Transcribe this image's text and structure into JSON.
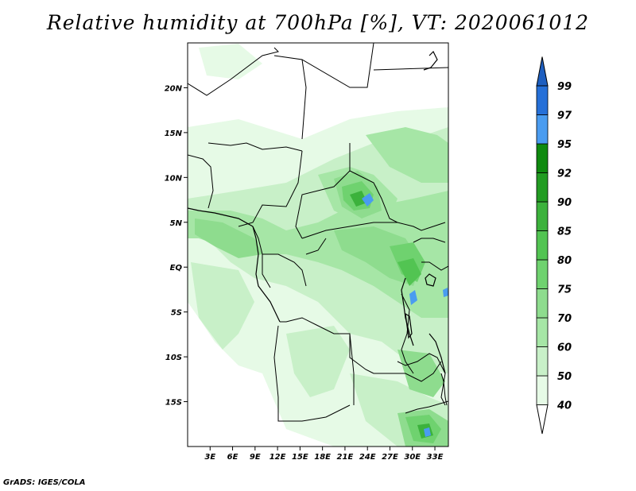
{
  "title": "Relative humidity at 700hPa [%], VT: 2020061012",
  "credit": "GrADS: IGES/COLA",
  "map": {
    "lon_range": [
      0,
      34.8
    ],
    "lat_range": [
      -20,
      25
    ],
    "lon_ticks": [
      {
        "value": 3,
        "label": "3E"
      },
      {
        "value": 6,
        "label": "6E"
      },
      {
        "value": 9,
        "label": "9E"
      },
      {
        "value": 12,
        "label": "12E"
      },
      {
        "value": 15,
        "label": "15E"
      },
      {
        "value": 18,
        "label": "18E"
      },
      {
        "value": 21,
        "label": "21E"
      },
      {
        "value": 24,
        "label": "24E"
      },
      {
        "value": 27,
        "label": "27E"
      },
      {
        "value": 30,
        "label": "30E"
      },
      {
        "value": 33,
        "label": "33E"
      }
    ],
    "lat_ticks": [
      {
        "value": 20,
        "label": "20N"
      },
      {
        "value": 15,
        "label": "15N"
      },
      {
        "value": 10,
        "label": "10N"
      },
      {
        "value": 5,
        "label": "5N"
      },
      {
        "value": 0,
        "label": "EQ"
      },
      {
        "value": -5,
        "label": "5S"
      },
      {
        "value": -10,
        "label": "10S"
      },
      {
        "value": -15,
        "label": "15S"
      }
    ]
  },
  "colorbar": {
    "levels": [
      {
        "label": "40",
        "color": "#ffffff"
      },
      {
        "label": "50",
        "color": "#e6fae6"
      },
      {
        "label": "60",
        "color": "#c8f0c8"
      },
      {
        "label": "70",
        "color": "#a6e6a6"
      },
      {
        "label": "75",
        "color": "#8edc8e"
      },
      {
        "label": "80",
        "color": "#6fd26f"
      },
      {
        "label": "85",
        "color": "#52c452"
      },
      {
        "label": "90",
        "color": "#3cb23c"
      },
      {
        "label": "92",
        "color": "#229c22"
      },
      {
        "label": "95",
        "color": "#0f8a0f"
      },
      {
        "label": "97",
        "color": "#4a9cf0"
      },
      {
        "label": "99",
        "color": "#2670d8"
      }
    ],
    "top_color": "#1e5fc0"
  }
}
